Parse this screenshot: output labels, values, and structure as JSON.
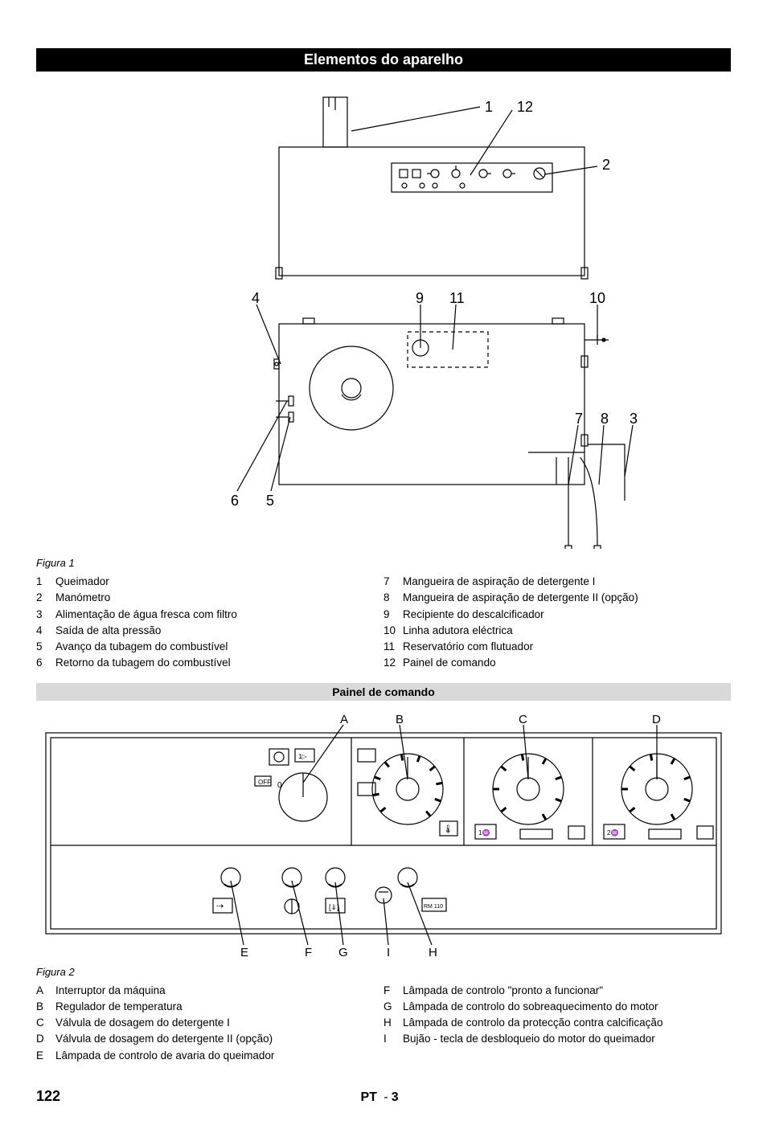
{
  "header": {
    "title": "Elementos do aparelho"
  },
  "figure1": {
    "caption": "Figura 1",
    "labels": {
      "l1": "1",
      "l2": "2",
      "l3": "3",
      "l4": "4",
      "l5": "5",
      "l6": "6",
      "l7": "7",
      "l8": "8",
      "l9": "9",
      "l10": "10",
      "l11": "11",
      "l12": "12"
    },
    "stroke": "#000000",
    "fill": "#ffffff",
    "legend_left": [
      {
        "k": "1",
        "t": "Queimador"
      },
      {
        "k": "2",
        "t": "Manómetro"
      },
      {
        "k": "3",
        "t": "Alimentação de água fresca com filtro"
      },
      {
        "k": "4",
        "t": "Saída de alta pressão"
      },
      {
        "k": "5",
        "t": "Avanço da tubagem do combustível"
      },
      {
        "k": "6",
        "t": "Retorno da tubagem do combustível"
      }
    ],
    "legend_right": [
      {
        "k": "7",
        "t": "Mangueira de aspiração de detergente I"
      },
      {
        "k": "8",
        "t": "Mangueira de aspiração de detergente II (opção)"
      },
      {
        "k": "9",
        "t": "Recipiente do descalcificador"
      },
      {
        "k": "10",
        "t": "Linha adutora eléctrica"
      },
      {
        "k": "11",
        "t": "Reservatório com flutuador"
      },
      {
        "k": "12",
        "t": "Painel de comando"
      }
    ]
  },
  "section2": {
    "title": "Painel de comando"
  },
  "figure2": {
    "caption": "Figura 2",
    "labels": {
      "A": "A",
      "B": "B",
      "C": "C",
      "D": "D",
      "E": "E",
      "F": "F",
      "G": "G",
      "H": "H",
      "I": "I"
    },
    "stroke": "#000000",
    "legend_left": [
      {
        "k": "A",
        "t": "Interruptor da máquina"
      },
      {
        "k": "B",
        "t": "Regulador de temperatura"
      },
      {
        "k": "C",
        "t": "Válvula de dosagem do detergente I"
      },
      {
        "k": "D",
        "t": "Válvula de dosagem do detergente II (opção)"
      },
      {
        "k": "E",
        "t": "Lâmpada de controlo de avaria do queimador"
      }
    ],
    "legend_right": [
      {
        "k": "F",
        "t": "Lâmpada de controlo \"pronto a funcionar\""
      },
      {
        "k": "G",
        "t": "Lâmpada de controlo do sobreaquecimento do motor"
      },
      {
        "k": "H",
        "t": "Lâmpada de controlo da protecção contra calcificação"
      },
      {
        "k": "I",
        "t": "Bujão - tecla de desbloqueio do motor do queimador"
      }
    ]
  },
  "footer": {
    "page": "122",
    "lang": "PT",
    "sub": "3"
  }
}
